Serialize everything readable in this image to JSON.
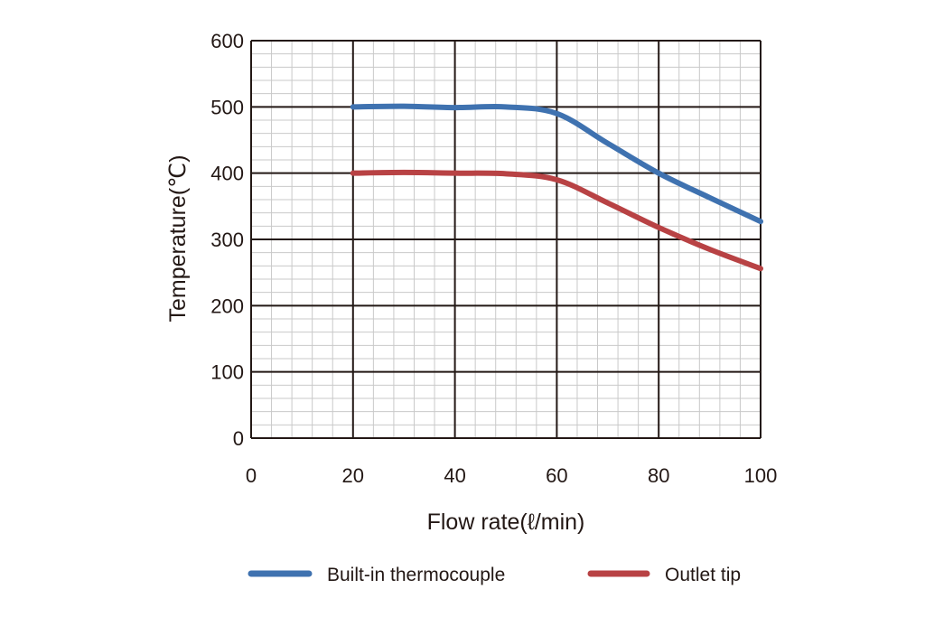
{
  "chart_data": {
    "type": "line",
    "title": "",
    "xlabel": "Flow rate(ℓ/min)",
    "ylabel": "Temperature(℃)",
    "xlim": [
      0,
      100
    ],
    "ylim": [
      0,
      600
    ],
    "xticks": [
      0,
      20,
      40,
      60,
      80,
      100
    ],
    "yticks": [
      0,
      100,
      200,
      300,
      400,
      500,
      600
    ],
    "x_tick_labels": [
      "0",
      "20",
      "40",
      "60",
      "80",
      "100"
    ],
    "y_tick_labels": [
      "0",
      "100",
      "200",
      "300",
      "400",
      "500",
      "600"
    ],
    "grid": true,
    "minor_grid_step_x": 4,
    "minor_grid_step_y": 20,
    "legend_position": "bottom",
    "series": [
      {
        "name": "Built-in thermocouple",
        "color": "#3f72b0",
        "x": [
          20,
          30,
          40,
          50,
          60,
          70,
          80,
          90,
          100
        ],
        "y": [
          500,
          501,
          499,
          500,
          490,
          445,
          400,
          363,
          327
        ]
      },
      {
        "name": "Outlet tip",
        "color": "#b84244",
        "x": [
          20,
          30,
          40,
          50,
          60,
          70,
          80,
          90,
          100
        ],
        "y": [
          400,
          401,
          400,
          399,
          390,
          355,
          318,
          285,
          256
        ]
      }
    ]
  }
}
